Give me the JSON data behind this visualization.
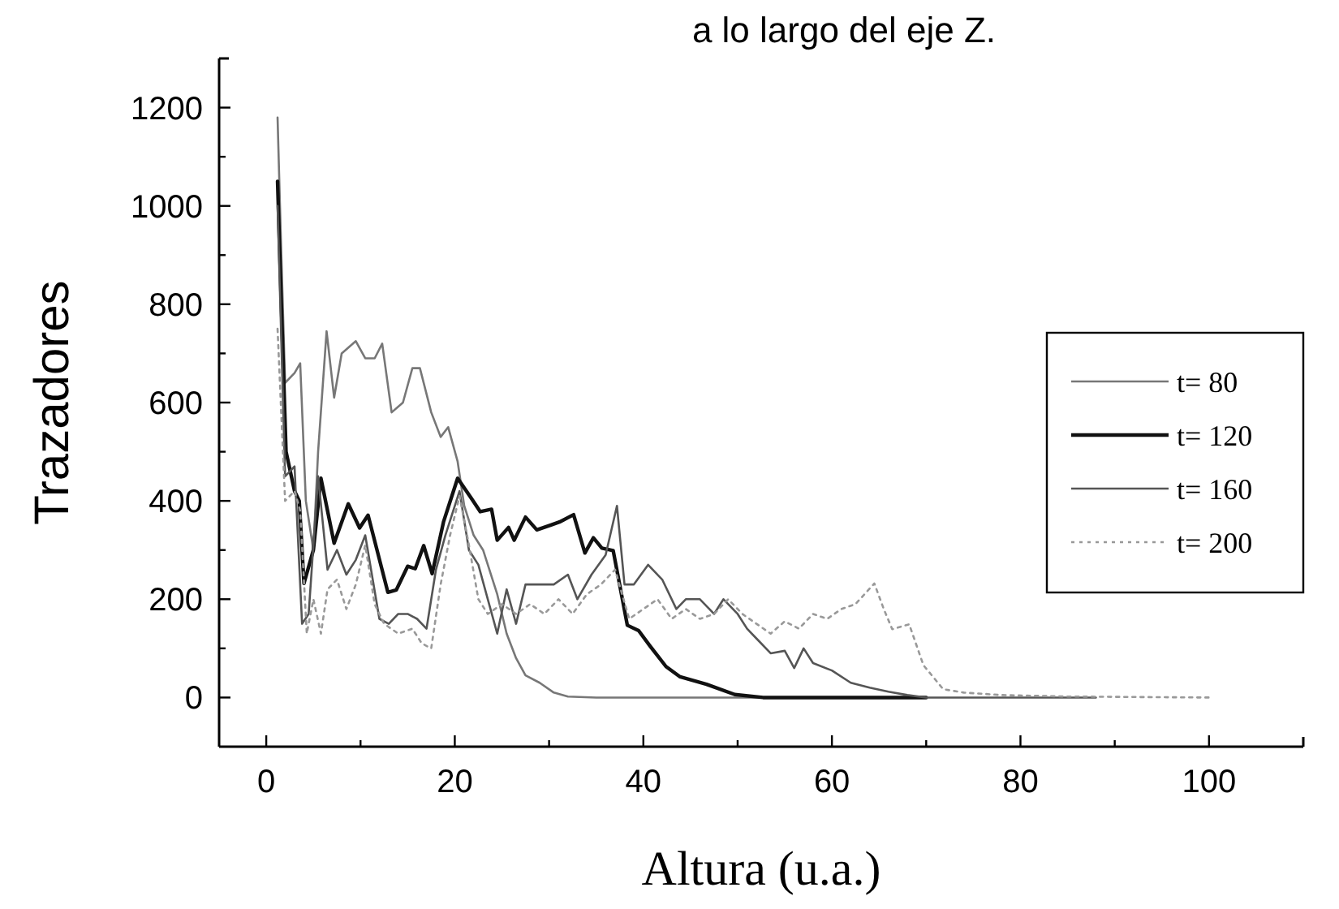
{
  "chart_data": {
    "type": "line",
    "title": "a lo largo del eje Z.",
    "xlabel": "Altura (u.a.)",
    "ylabel": "Trazadores",
    "xlim": [
      -5,
      110
    ],
    "ylim": [
      -100,
      1300
    ],
    "xticks": [
      0,
      {
        "value": 10,
        "label": null
      },
      20,
      {
        "value": 30,
        "label": null
      },
      40,
      {
        "value": 50,
        "label": null
      },
      60,
      {
        "value": 70,
        "label": null
      },
      80,
      {
        "value": 90,
        "label": null
      },
      100
    ],
    "yticks": [
      0,
      {
        "value": 100,
        "label": null
      },
      200,
      {
        "value": 300,
        "label": null
      },
      400,
      {
        "value": 500,
        "label": null
      },
      600,
      {
        "value": 700,
        "label": null
      },
      800,
      {
        "value": 900,
        "label": null
      },
      1000,
      {
        "value": 1100,
        "label": null
      },
      1200
    ],
    "grid": false,
    "legend": "right",
    "marker": "none",
    "series": [
      {
        "name": "t= 80",
        "color": "#777777",
        "line_style": "solid",
        "x": [
          1.2,
          1.6,
          2,
          3,
          3.6,
          4.2,
          5,
          5.5,
          6.4,
          7.2,
          8,
          9.5,
          10.5,
          11.5,
          12.3,
          13.3,
          14.5,
          15.5,
          16.3,
          17.5,
          18.5,
          19.3,
          20.3,
          21,
          22,
          23,
          24.5,
          25.5,
          26.5,
          27.5,
          29,
          30.5,
          32,
          35,
          50,
          70
        ],
        "values": [
          1180,
          900,
          640,
          660,
          680,
          400,
          300,
          500,
          745,
          610,
          700,
          725,
          690,
          690,
          720,
          580,
          600,
          670,
          670,
          580,
          530,
          550,
          480,
          390,
          330,
          300,
          210,
          130,
          80,
          45,
          30,
          10,
          2,
          0,
          0,
          0
        ]
      },
      {
        "name": "t= 120",
        "color": "#111111",
        "line_style": "solid",
        "x": [
          1.2,
          1.6,
          2.1,
          3,
          3.5,
          4,
          5,
          5.8,
          7.2,
          8.7,
          9.9,
          10.8,
          12.9,
          13.8,
          15,
          15.8,
          16.7,
          17.6,
          18.8,
          20.3,
          21.8,
          22.7,
          23.9,
          24.5,
          25.7,
          26.3,
          27.5,
          28.7,
          30.2,
          31.1,
          32.6,
          33.8,
          34.7,
          35.6,
          36.8,
          38.3,
          39.5,
          40.7,
          42.4,
          43.9,
          46.7,
          49.7,
          52.7,
          60,
          70
        ],
        "values": [
          1050,
          800,
          500,
          420,
          400,
          232,
          300,
          446,
          314,
          394,
          345,
          371,
          214,
          219,
          267,
          262,
          309,
          252,
          357,
          446,
          404,
          378,
          383,
          320,
          346,
          320,
          367,
          341,
          351,
          357,
          372,
          294,
          325,
          304,
          299,
          147,
          136,
          105,
          63,
          42,
          27,
          6,
          0,
          0,
          0
        ]
      },
      {
        "name": "t= 160",
        "color": "#555555",
        "line_style": "solid",
        "x": [
          1.2,
          2,
          3,
          3.8,
          4.5,
          5.5,
          6.5,
          7.5,
          8.5,
          9.5,
          10.5,
          12,
          13,
          14,
          15,
          16,
          17,
          18,
          19,
          20.5,
          21.5,
          22.5,
          23.5,
          24.5,
          25.5,
          26.5,
          27.5,
          29,
          30.5,
          32,
          33,
          34.5,
          36,
          37.2,
          38,
          39,
          40.5,
          42,
          43.5,
          44.5,
          46,
          47.5,
          48.5,
          50,
          51,
          52,
          53.5,
          55,
          56,
          57,
          58,
          60,
          62,
          64,
          66,
          68,
          70,
          80,
          88
        ],
        "values": [
          1000,
          450,
          470,
          150,
          170,
          450,
          260,
          300,
          250,
          280,
          330,
          160,
          150,
          170,
          170,
          160,
          140,
          260,
          330,
          420,
          300,
          270,
          200,
          130,
          220,
          150,
          230,
          230,
          230,
          250,
          200,
          250,
          290,
          390,
          230,
          230,
          270,
          240,
          180,
          200,
          200,
          170,
          200,
          170,
          140,
          120,
          90,
          95,
          60,
          100,
          70,
          55,
          30,
          20,
          12,
          5,
          0,
          0,
          0
        ]
      },
      {
        "name": "t= 200",
        "color": "#999999",
        "line_style": "dotted",
        "x": [
          1.2,
          2,
          3,
          3.6,
          4.3,
          5,
          5.8,
          6.5,
          7.5,
          8.5,
          9.5,
          10.5,
          11.5,
          12.5,
          14,
          15.5,
          16.5,
          17.5,
          18.5,
          19.5,
          20.5,
          21.5,
          22.5,
          23.5,
          25,
          26.5,
          28,
          29.5,
          31,
          32.5,
          34,
          35.5,
          37,
          38.5,
          40,
          41.5,
          43,
          44.5,
          46,
          47.5,
          49,
          50.5,
          52,
          53.5,
          55,
          56.5,
          58,
          59.5,
          61,
          62.5,
          64.5,
          65.5,
          66.4,
          68.2,
          69.7,
          71.8,
          74,
          78,
          85,
          100
        ],
        "values": [
          750,
          400,
          420,
          380,
          130,
          200,
          130,
          220,
          240,
          180,
          230,
          310,
          190,
          150,
          130,
          140,
          110,
          100,
          230,
          330,
          410,
          310,
          200,
          170,
          190,
          170,
          190,
          170,
          200,
          170,
          210,
          230,
          260,
          160,
          180,
          200,
          160,
          180,
          160,
          170,
          200,
          170,
          150,
          130,
          155,
          140,
          170,
          160,
          180,
          190,
          232,
          180,
          139,
          149,
          66,
          17,
          10,
          5,
          2,
          0
        ]
      }
    ]
  }
}
